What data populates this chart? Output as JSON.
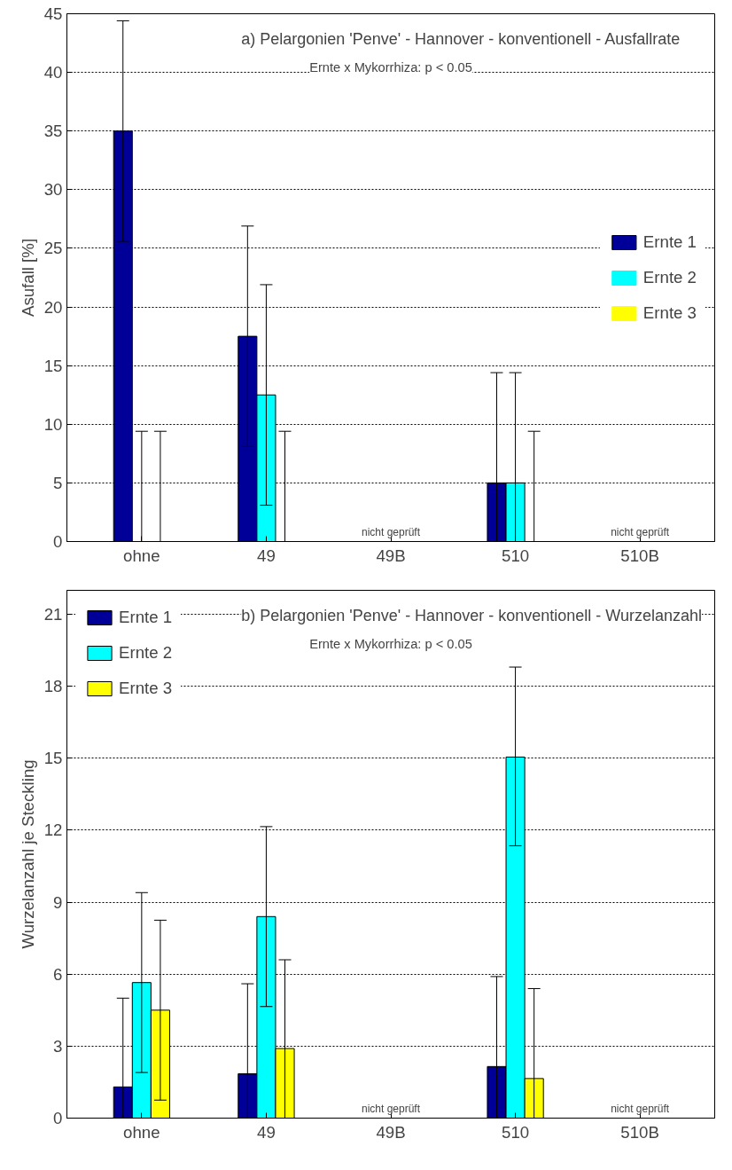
{
  "chart_data": [
    {
      "type": "bar",
      "title": "a) Pelargonien 'Penve' - Hannover - konventionell - Ausfallrate",
      "ylabel": "Asufall [%]",
      "categories": [
        "ohne",
        "49",
        "49B",
        "510",
        "510B"
      ],
      "ylim": [
        0,
        45
      ],
      "yticks": [
        0,
        5,
        10,
        15,
        20,
        25,
        30,
        35,
        40,
        45
      ],
      "grid": "y",
      "legend": "right",
      "annotations": [
        "Ernte x Mykorrhiza: p < 0.05",
        "nicht geprüft",
        "nicht geprüft"
      ],
      "series": [
        {
          "name": "Ernte 1",
          "color": "#000099",
          "values": [
            35,
            17.5,
            null,
            5,
            null
          ],
          "errors": [
            [
              25.6,
              44.4
            ],
            [
              8.1,
              26.9
            ],
            null,
            [
              0,
              14.4
            ],
            null
          ]
        },
        {
          "name": "Ernte 2",
          "color": "#00ffff",
          "values": [
            0,
            12.5,
            null,
            5,
            null
          ],
          "errors": [
            [
              0,
              9.4
            ],
            [
              3.1,
              21.9
            ],
            null,
            [
              0,
              14.4
            ],
            null
          ]
        },
        {
          "name": "Ernte 3",
          "color": "#ffff00",
          "values": [
            0,
            0,
            null,
            0,
            null
          ],
          "errors": [
            [
              0,
              9.4
            ],
            [
              0,
              9.4
            ],
            null,
            [
              0,
              9.4
            ],
            null
          ]
        }
      ]
    },
    {
      "type": "bar",
      "title": "b) Pelargonien 'Penve' - Hannover - konventionell - Wurzelanzahl",
      "ylabel": "Wurzelanzahl je Steckling",
      "categories": [
        "ohne",
        "49",
        "49B",
        "510",
        "510B"
      ],
      "ylim": [
        0,
        22
      ],
      "yticks": [
        0,
        3,
        6,
        9,
        12,
        15,
        18,
        21
      ],
      "grid": "y",
      "legend": "top left",
      "annotations": [
        "Ernte x Mykorrhiza: p < 0.05",
        "nicht geprüft",
        "nicht geprüft"
      ],
      "series": [
        {
          "name": "Ernte 1",
          "color": "#000099",
          "values": [
            1.3,
            1.85,
            null,
            2.15,
            null
          ],
          "errors": [
            [
              0,
              5.0
            ],
            [
              0,
              5.6
            ],
            null,
            [
              0,
              5.9
            ],
            null
          ]
        },
        {
          "name": "Ernte 2",
          "color": "#00ffff",
          "values": [
            5.65,
            8.4,
            null,
            15.05,
            null
          ],
          "errors": [
            [
              1.9,
              9.4
            ],
            [
              4.65,
              12.15
            ],
            null,
            [
              11.35,
              18.8
            ],
            null
          ]
        },
        {
          "name": "Ernte 3",
          "color": "#ffff00",
          "values": [
            4.5,
            2.9,
            null,
            1.65,
            null
          ],
          "errors": [
            [
              0.75,
              8.25
            ],
            [
              0,
              6.6
            ],
            null,
            [
              0,
              5.4
            ],
            null
          ]
        }
      ]
    }
  ]
}
